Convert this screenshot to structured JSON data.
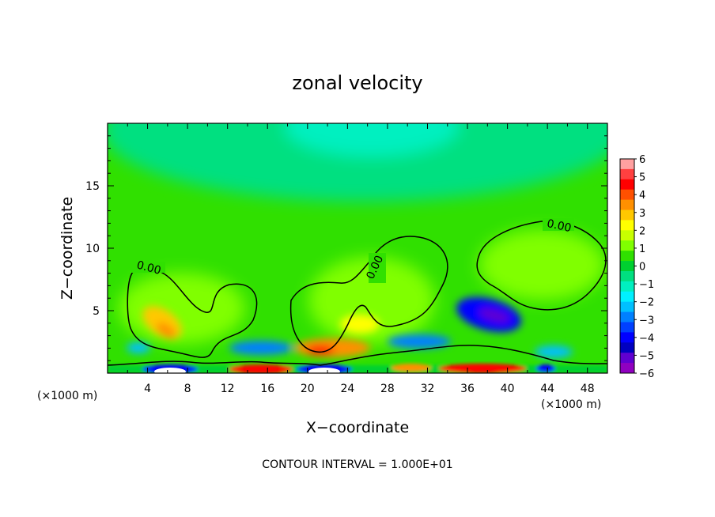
{
  "chart_data": {
    "type": "heatmap",
    "title": "zonal velocity",
    "xlabel": "X−coordinate",
    "ylabel": "Z−coordinate",
    "x_unit_label": "(×1000 m)",
    "y_unit_label": "(×1000 m)",
    "xlim": [
      0,
      50
    ],
    "ylim": [
      0,
      20
    ],
    "x_ticks": [
      4,
      8,
      12,
      16,
      20,
      24,
      28,
      32,
      36,
      40,
      44,
      48
    ],
    "y_ticks": [
      5,
      10,
      15
    ],
    "contour_interval_text": "CONTOUR INTERVAL = 1.000E+01",
    "contour_labels": [
      "0.00",
      "0.00",
      "0.00"
    ],
    "colorbar": {
      "ticks": [
        "6",
        "5",
        "4",
        "3",
        "2",
        "1",
        "0",
        "−1",
        "−2",
        "−3",
        "−4",
        "−5",
        "−6"
      ],
      "range": [
        -6,
        6
      ],
      "colors": [
        "#ffa0a0",
        "#ff4040",
        "#ff0000",
        "#ff5000",
        "#ff9000",
        "#ffc800",
        "#ffff00",
        "#c8ff00",
        "#80ff00",
        "#30e000",
        "#00d030",
        "#00e080",
        "#00f0c0",
        "#00f0ff",
        "#00c0ff",
        "#0080ff",
        "#0040ff",
        "#0000ff",
        "#0000c0",
        "#6000d0",
        "#9000c0"
      ]
    },
    "features": [
      {
        "x": 25,
        "z": 19,
        "value": -2
      },
      {
        "x": 5,
        "z": 3.5,
        "value": 3
      },
      {
        "x": 22,
        "z": 1.8,
        "value": 4
      },
      {
        "x": 39,
        "z": 4.8,
        "value": -5
      },
      {
        "x": 15,
        "z": 0.3,
        "value": 5
      },
      {
        "x": 37,
        "z": 0.3,
        "value": 5
      },
      {
        "x": 6,
        "z": 0.2,
        "value": -6
      },
      {
        "x": 21,
        "z": 0.2,
        "value": -6
      },
      {
        "x": 42,
        "z": 8.5,
        "value": 1
      },
      {
        "x": 30,
        "z": 7.5,
        "value": 1
      }
    ]
  }
}
